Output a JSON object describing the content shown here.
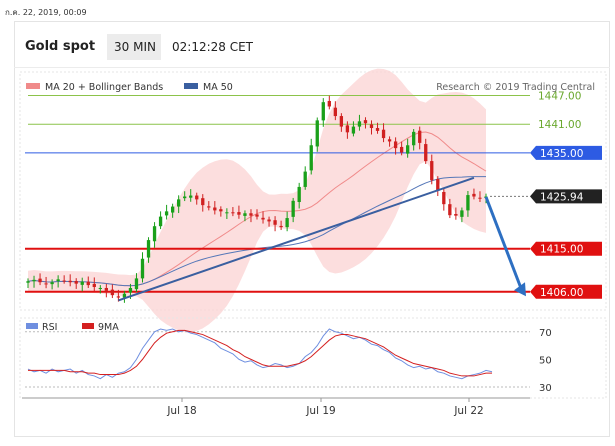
{
  "header": {
    "timestamp": "ก.ค. 22, 2019, 00:09",
    "instrument": "Gold spot",
    "timeframe": "30 MIN",
    "time": "02:12:28 CET"
  },
  "legend": {
    "items": [
      {
        "label": "MA 20 + Bollinger Bands",
        "color": "#f08a8a"
      },
      {
        "label": "MA 50",
        "color": "#3a5fa0"
      }
    ],
    "credit": "Research © 2019 Trading Central"
  },
  "rsi_legend": {
    "items": [
      {
        "label": "RSI",
        "color": "#6f8fe0"
      },
      {
        "label": "9MA",
        "color": "#d42020"
      }
    ]
  },
  "colors": {
    "up": "#1aa01a",
    "down": "#d02020",
    "support": "#e01010",
    "resistance_green": "#8cc34a",
    "resistance_blue": "#2d5be3",
    "trendline": "#3a5fa0",
    "bollinger_fill": "#fbd3d3",
    "current_price_bg": "#222222"
  },
  "chart_data": [
    {
      "type": "candlestick",
      "title": "Gold spot",
      "x_ticks": [
        "Jul 18",
        "Jul 19",
        "Jul 22"
      ],
      "ylim": [
        1402.2,
        1451.9
      ],
      "levels": [
        {
          "value": 1447.0,
          "label": "1447.00",
          "kind": "resistance",
          "color": "#8cc34a"
        },
        {
          "value": 1441.0,
          "label": "1441.00",
          "kind": "resistance",
          "color": "#8cc34a"
        },
        {
          "value": 1435.0,
          "label": "1435.00",
          "kind": "pivot",
          "color": "#2d5be3"
        },
        {
          "value": 1425.94,
          "label": "1425.94",
          "kind": "current_price",
          "color": "#222222"
        },
        {
          "value": 1415.0,
          "label": "1415.00",
          "kind": "support",
          "color": "#e01010"
        },
        {
          "value": 1406.0,
          "label": "1406.00",
          "kind": "support",
          "color": "#e01010"
        }
      ],
      "close_path": [
        1408.2,
        1408.5,
        1408.0,
        1407.6,
        1408.0,
        1408.6,
        1408.3,
        1408.0,
        1407.7,
        1408.1,
        1407.4,
        1407.0,
        1406.8,
        1406.2,
        1405.3,
        1404.8,
        1405.6,
        1406.8,
        1408.8,
        1412.9,
        1416.8,
        1419.7,
        1421.7,
        1422.8,
        1423.8,
        1425.3,
        1425.9,
        1426.1,
        1425.3,
        1424.1,
        1423.6,
        1423.0,
        1422.8,
        1422.6,
        1422.4,
        1422.1,
        1422.4,
        1421.9,
        1421.7,
        1421.1,
        1420.7,
        1420.0,
        1419.5,
        1421.4,
        1425.0,
        1427.9,
        1431.1,
        1436.6,
        1441.8,
        1445.6,
        1444.7,
        1442.7,
        1440.5,
        1439.3,
        1440.5,
        1441.6,
        1441.2,
        1440.2,
        1439.6,
        1438.1,
        1437.4,
        1436.0,
        1435.1,
        1436.6,
        1439.4,
        1437.1,
        1433.3,
        1429.3,
        1427.1,
        1424.3,
        1422.0,
        1421.9,
        1423.0,
        1426.2,
        1425.9,
        1425.6,
        1425.9
      ],
      "trendline": {
        "from": {
          "index": 15,
          "value": 1404.2
        },
        "to": {
          "index": 74,
          "value": 1429.8
        }
      },
      "projection": {
        "from_value": 1425.8,
        "to_value": 1405.7
      }
    },
    {
      "type": "line",
      "title": "RSI",
      "ylim": [
        22,
        80
      ],
      "y_ticks": [
        70,
        50,
        30
      ],
      "series": [
        {
          "name": "RSI",
          "values": [
            43,
            41,
            42,
            40,
            43,
            41,
            42,
            43,
            40,
            42,
            39,
            38,
            36,
            39,
            37,
            40,
            41,
            44,
            50,
            58,
            64,
            70,
            72,
            71,
            72,
            70,
            71,
            69,
            68,
            66,
            64,
            62,
            58,
            56,
            54,
            50,
            48,
            49,
            46,
            44,
            45,
            47,
            46,
            44,
            45,
            47,
            52,
            55,
            60,
            67,
            72,
            70,
            69,
            67,
            65,
            66,
            64,
            61,
            60,
            57,
            55,
            51,
            49,
            46,
            44,
            45,
            43,
            44,
            41,
            40,
            38,
            37,
            36,
            38,
            39,
            40,
            42,
            41
          ]
        },
        {
          "name": "9MA",
          "values": [
            42,
            42,
            42,
            42,
            42,
            42,
            42,
            41,
            41,
            41,
            40,
            40,
            39,
            39,
            39,
            39,
            40,
            42,
            45,
            50,
            56,
            62,
            66,
            69,
            70,
            71,
            71,
            70,
            69,
            68,
            66,
            64,
            62,
            60,
            57,
            55,
            52,
            50,
            48,
            46,
            45,
            45,
            45,
            45,
            46,
            47,
            49,
            52,
            56,
            60,
            64,
            67,
            68,
            68,
            67,
            66,
            65,
            63,
            61,
            59,
            56,
            53,
            51,
            49,
            47,
            46,
            45,
            44,
            43,
            42,
            40,
            39,
            38,
            38,
            38,
            39,
            40,
            40
          ]
        }
      ]
    }
  ]
}
